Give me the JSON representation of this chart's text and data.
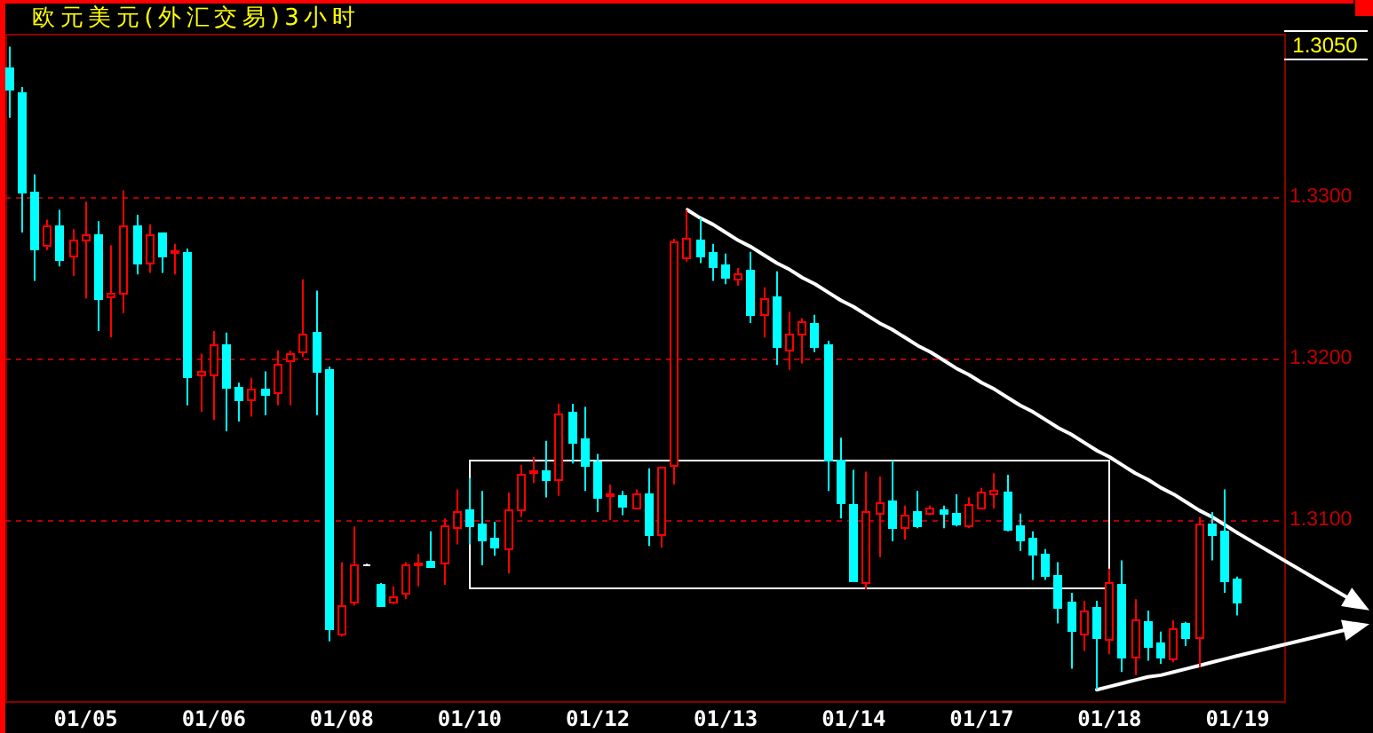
{
  "chart_data": {
    "type": "candlestick",
    "title": "欧元美元(外汇交易)3小时",
    "annotations": [
      "1.3050"
    ],
    "categories": [
      null,
      null,
      null,
      null,
      null,
      null,
      "01/05",
      null,
      null,
      null,
      null,
      null,
      null,
      null,
      null,
      null,
      "01/06",
      null,
      null,
      null,
      null,
      null,
      null,
      null,
      null,
      null,
      "01/08",
      null,
      null,
      null,
      null,
      null,
      null,
      null,
      null,
      null,
      "01/10",
      null,
      null,
      null,
      null,
      null,
      null,
      null,
      null,
      null,
      "01/12",
      null,
      null,
      null,
      null,
      null,
      null,
      null,
      null,
      null,
      "01/13",
      null,
      null,
      null,
      null,
      null,
      null,
      null,
      null,
      null,
      "01/14",
      null,
      null,
      null,
      null,
      null,
      null,
      null,
      null,
      null,
      "01/17",
      null,
      null,
      null,
      null,
      null,
      null,
      null,
      null,
      null,
      "01/18",
      null,
      null,
      null,
      null,
      null,
      null,
      null,
      null,
      null,
      "01/19"
    ],
    "ohlc": [
      [
        1.338,
        1.3393,
        1.3349,
        1.3367
      ],
      [
        1.3365,
        1.3368,
        1.3278,
        1.3303
      ],
      [
        1.3303,
        1.3314,
        1.3248,
        1.3268
      ],
      [
        1.327,
        1.3286,
        1.3267,
        1.3282
      ],
      [
        1.3282,
        1.3292,
        1.3257,
        1.3262
      ],
      [
        1.3264,
        1.328,
        1.3251,
        1.3274
      ],
      [
        1.3274,
        1.3297,
        1.3237,
        1.3277
      ],
      [
        1.3277,
        1.3285,
        1.3217,
        1.3237
      ],
      [
        1.3238,
        1.327,
        1.3213,
        1.3241
      ],
      [
        1.3241,
        1.3304,
        1.3228,
        1.3282
      ],
      [
        1.3282,
        1.3289,
        1.3252,
        1.3259
      ],
      [
        1.3259,
        1.3283,
        1.3253,
        1.3277
      ],
      [
        1.3278,
        1.3278,
        1.3253,
        1.3264
      ],
      [
        1.3266,
        1.3271,
        1.3252,
        1.3267
      ],
      [
        1.3266,
        1.3268,
        1.3171,
        1.3189
      ],
      [
        1.319,
        1.3203,
        1.3167,
        1.3192
      ],
      [
        1.319,
        1.3217,
        1.3162,
        1.3209
      ],
      [
        1.3209,
        1.3216,
        1.3155,
        1.3182
      ],
      [
        1.3182,
        1.3185,
        1.3161,
        1.3175
      ],
      [
        1.3175,
        1.3188,
        1.3164,
        1.3181
      ],
      [
        1.3181,
        1.3192,
        1.3165,
        1.3178
      ],
      [
        1.3179,
        1.3205,
        1.3171,
        1.3197
      ],
      [
        1.3199,
        1.3205,
        1.3171,
        1.3203
      ],
      [
        1.3204,
        1.3249,
        1.3201,
        1.3215
      ],
      [
        1.3217,
        1.3242,
        1.3165,
        1.3192
      ],
      [
        1.3193,
        1.3195,
        1.3025,
        1.3033
      ],
      [
        1.303,
        1.3074,
        1.3028,
        1.3047
      ],
      [
        1.3049,
        1.3096,
        1.3047,
        1.3073
      ],
      [
        1.3073,
        1.3073,
        1.3073,
        1.3073
      ],
      [
        1.3061,
        1.3061,
        1.3047,
        1.3047
      ],
      [
        1.305,
        1.3059,
        1.3048,
        1.3053
      ],
      [
        1.3055,
        1.3074,
        1.3051,
        1.3073
      ],
      [
        1.3073,
        1.3079,
        1.3059,
        1.3074
      ],
      [
        1.3075,
        1.3093,
        1.3071,
        1.3072
      ],
      [
        1.3074,
        1.3101,
        1.306,
        1.3097
      ],
      [
        1.3096,
        1.3119,
        1.3085,
        1.3106
      ],
      [
        1.3107,
        1.3126,
        1.3085,
        1.3097
      ],
      [
        1.3098,
        1.3118,
        1.3072,
        1.3088
      ],
      [
        1.3089,
        1.3099,
        1.3078,
        1.3084
      ],
      [
        1.3083,
        1.3117,
        1.3067,
        1.3107
      ],
      [
        1.3107,
        1.3134,
        1.3102,
        1.3129
      ],
      [
        1.313,
        1.3139,
        1.3123,
        1.3131
      ],
      [
        1.3131,
        1.3149,
        1.3114,
        1.3125
      ],
      [
        1.3125,
        1.3172,
        1.3115,
        1.3166
      ],
      [
        1.3167,
        1.3172,
        1.3135,
        1.3148
      ],
      [
        1.3151,
        1.317,
        1.3118,
        1.3134
      ],
      [
        1.3136,
        1.3141,
        1.3105,
        1.3114
      ],
      [
        1.3115,
        1.3122,
        1.31,
        1.3117
      ],
      [
        1.3115,
        1.3118,
        1.3103,
        1.3109
      ],
      [
        1.3108,
        1.3119,
        1.3107,
        1.3116
      ],
      [
        1.3117,
        1.3132,
        1.3084,
        1.3091
      ],
      [
        1.3091,
        1.3133,
        1.3083,
        1.3133
      ],
      [
        1.3134,
        1.3274,
        1.3122,
        1.3273
      ],
      [
        1.3263,
        1.3292,
        1.326,
        1.3275
      ],
      [
        1.3274,
        1.3287,
        1.3259,
        1.3264
      ],
      [
        1.3266,
        1.3271,
        1.3248,
        1.3257
      ],
      [
        1.3258,
        1.3265,
        1.3246,
        1.3251
      ],
      [
        1.3249,
        1.3256,
        1.3245,
        1.3253
      ],
      [
        1.3255,
        1.3266,
        1.3222,
        1.3227
      ],
      [
        1.3228,
        1.3244,
        1.3213,
        1.3237
      ],
      [
        1.3238,
        1.3254,
        1.3196,
        1.3208
      ],
      [
        1.3206,
        1.3229,
        1.3193,
        1.3215
      ],
      [
        1.3215,
        1.3225,
        1.3197,
        1.3223
      ],
      [
        1.3222,
        1.3227,
        1.3204,
        1.3208
      ],
      [
        1.3209,
        1.3211,
        1.3118,
        1.3137
      ],
      [
        1.3137,
        1.3151,
        1.3101,
        1.3111
      ],
      [
        1.311,
        1.3131,
        1.3062,
        1.3063
      ],
      [
        1.3062,
        1.313,
        1.3057,
        1.3106
      ],
      [
        1.3104,
        1.3127,
        1.3077,
        1.3111
      ],
      [
        1.3112,
        1.3137,
        1.3087,
        1.3096
      ],
      [
        1.3096,
        1.3109,
        1.3088,
        1.3103
      ],
      [
        1.3106,
        1.3118,
        1.3095,
        1.3097
      ],
      [
        1.3104,
        1.3109,
        1.3103,
        1.3108
      ],
      [
        1.3107,
        1.3109,
        1.3095,
        1.3104
      ],
      [
        1.3104,
        1.3116,
        1.3096,
        1.3098
      ],
      [
        1.3097,
        1.3114,
        1.3095,
        1.311
      ],
      [
        1.3108,
        1.312,
        1.3107,
        1.3118
      ],
      [
        1.3116,
        1.3129,
        1.3107,
        1.3119
      ],
      [
        1.3118,
        1.3128,
        1.3093,
        1.3094
      ],
      [
        1.3097,
        1.3104,
        1.3081,
        1.3088
      ],
      [
        1.3089,
        1.3093,
        1.3063,
        1.3079
      ],
      [
        1.3079,
        1.3082,
        1.3063,
        1.3066
      ],
      [
        1.3066,
        1.3074,
        1.3036,
        1.3046
      ],
      [
        1.3049,
        1.3055,
        1.3008,
        1.3032
      ],
      [
        1.303,
        1.305,
        1.3019,
        1.3044
      ],
      [
        1.3046,
        1.305,
        1.2995,
        1.3028
      ],
      [
        1.3026,
        1.307,
        1.3017,
        1.3062
      ],
      [
        1.3061,
        1.3075,
        1.3006,
        1.3015
      ],
      [
        1.3015,
        1.3051,
        1.3004,
        1.3038
      ],
      [
        1.3037,
        1.3044,
        1.3013,
        1.3022
      ],
      [
        1.3024,
        1.3031,
        1.3011,
        1.3015
      ],
      [
        1.3014,
        1.3038,
        1.3012,
        1.3033
      ],
      [
        1.3036,
        1.3037,
        1.3022,
        1.3027
      ],
      [
        1.3027,
        1.3102,
        1.3009,
        1.3098
      ],
      [
        1.3098,
        1.3105,
        1.3075,
        1.3091
      ],
      [
        1.3093,
        1.3119,
        1.3055,
        1.3063
      ],
      [
        1.3064,
        1.3065,
        1.3041,
        1.305
      ]
    ],
    "colors": [
      "#00ffff",
      "#00ffff",
      "#00ffff",
      "#ff0000",
      "#00ffff",
      "#ff0000",
      "#ff0000",
      "#00ffff",
      "#ff0000",
      "#ff0000",
      "#00ffff",
      "#ff0000",
      "#00ffff",
      "#ff0000",
      "#00ffff",
      "#ff0000",
      "#ff0000",
      "#00ffff",
      "#00ffff",
      "#ff0000",
      "#00ffff",
      "#ff0000",
      "#ff0000",
      "#ff0000",
      "#00ffff",
      "#00ffff",
      "#ff0000",
      "#ff0000",
      "#ffffff",
      "#00ffff",
      "#ff0000",
      "#ff0000",
      "#ff0000",
      "#00ffff",
      "#ff0000",
      "#ff0000",
      "#00ffff",
      "#00ffff",
      "#00ffff",
      "#ff0000",
      "#ff0000",
      "#ff0000",
      "#00ffff",
      "#ff0000",
      "#00ffff",
      "#00ffff",
      "#00ffff",
      "#ff0000",
      "#00ffff",
      "#ff0000",
      "#00ffff",
      "#ff0000",
      "#ff0000",
      "#ff0000",
      "#00ffff",
      "#00ffff",
      "#00ffff",
      "#ff0000",
      "#00ffff",
      "#ff0000",
      "#00ffff",
      "#ff0000",
      "#ff0000",
      "#00ffff",
      "#00ffff",
      "#00ffff",
      "#00ffff",
      "#ff0000",
      "#ff0000",
      "#00ffff",
      "#ff0000",
      "#00ffff",
      "#ff0000",
      "#00ffff",
      "#00ffff",
      "#ff0000",
      "#ff0000",
      "#ff0000",
      "#00ffff",
      "#00ffff",
      "#00ffff",
      "#00ffff",
      "#00ffff",
      "#00ffff",
      "#ff0000",
      "#00ffff",
      "#ff0000",
      "#00ffff",
      "#ff0000",
      "#00ffff",
      "#00ffff",
      "#ff0000",
      "#00ffff",
      "#ff0000",
      "#00ffff",
      "#00ffff",
      "#00ffff"
    ],
    "series": [
      {
        "type": "line",
        "color": "#ffffff",
        "values": [
          null,
          null,
          null,
          null,
          null,
          null,
          null,
          null,
          null,
          null,
          null,
          null,
          null,
          null,
          null,
          null,
          null,
          null,
          null,
          null,
          null,
          null,
          null,
          null,
          null,
          null,
          null,
          null,
          null,
          null,
          null,
          null,
          null,
          null,
          null,
          null,
          null,
          null,
          null,
          null,
          null,
          null,
          null,
          null,
          null,
          null,
          null,
          null,
          null,
          null,
          null,
          null,
          null,
          1.3292,
          1.3287,
          1.3283,
          1.3278,
          1.3273,
          1.3269,
          1.3264,
          1.3259,
          1.3255,
          1.325,
          1.3246,
          1.3241,
          1.3236,
          1.3232,
          1.3227,
          1.3222,
          1.3218,
          1.3213,
          1.3208,
          1.3204,
          1.3199,
          1.3194,
          1.319,
          1.3185,
          1.3181,
          1.3176,
          1.3171,
          1.3167,
          1.3162,
          1.3157,
          1.3153,
          1.3148,
          1.3143,
          1.3139,
          1.3134,
          1.3129,
          1.3125,
          1.312,
          1.3116,
          1.3111,
          1.3106,
          1.3102,
          1.3097,
          1.3092
        ]
      },
      {
        "type": "line",
        "color": "#ffffff",
        "values": [
          null,
          null,
          null,
          null,
          null,
          null,
          null,
          null,
          null,
          null,
          null,
          null,
          null,
          null,
          null,
          null,
          null,
          null,
          null,
          null,
          null,
          null,
          null,
          null,
          null,
          null,
          null,
          null,
          null,
          null,
          null,
          null,
          null,
          null,
          null,
          null,
          null,
          null,
          null,
          null,
          null,
          null,
          null,
          null,
          null,
          null,
          null,
          null,
          null,
          null,
          null,
          null,
          null,
          null,
          null,
          null,
          null,
          null,
          null,
          null,
          null,
          null,
          null,
          null,
          null,
          null,
          null,
          null,
          null,
          null,
          null,
          null,
          null,
          null,
          null,
          null,
          null,
          null,
          null,
          null,
          null,
          null,
          null,
          null,
          null,
          1.2995,
          1.2997,
          1.2999,
          1.3001,
          1.3003,
          1.3004,
          1.3006,
          1.3008,
          1.301,
          1.3012,
          1.3014,
          1.3016
        ]
      }
    ],
    "ylim": [
      1.2988,
      1.3401
    ],
    "yticks": [
      {
        "value": 1.31,
        "label": "1.3100"
      },
      {
        "value": 1.32,
        "label": "1.3200"
      },
      {
        "value": 1.33,
        "label": "1.3300"
      }
    ],
    "grid": "y"
  }
}
